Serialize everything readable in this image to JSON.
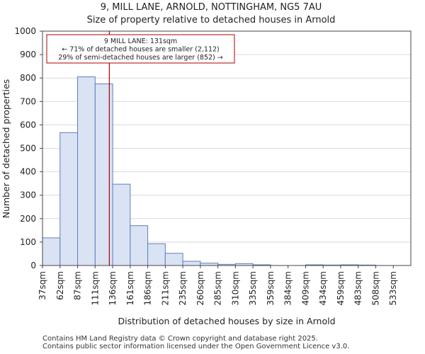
{
  "chart_data": {
    "type": "bar",
    "title": "9, MILL LANE, ARNOLD, NOTTINGHAM, NG5 7AU",
    "subtitle": "Size of property relative to detached houses in Arnold",
    "xlabel": "Distribution of detached houses by size in Arnold",
    "ylabel": "Number of detached properties",
    "categories": [
      "37sqm",
      "62sqm",
      "87sqm",
      "111sqm",
      "136sqm",
      "161sqm",
      "186sqm",
      "211sqm",
      "235sqm",
      "260sqm",
      "285sqm",
      "310sqm",
      "335sqm",
      "359sqm",
      "384sqm",
      "409sqm",
      "434sqm",
      "459sqm",
      "483sqm",
      "508sqm",
      "533sqm"
    ],
    "values": [
      118,
      567,
      805,
      775,
      347,
      170,
      93,
      52,
      18,
      10,
      5,
      8,
      3,
      0,
      0,
      3,
      2,
      3,
      2,
      0,
      0
    ],
    "ylim": [
      0,
      1000
    ],
    "yticks": [
      0,
      100,
      200,
      300,
      400,
      500,
      600,
      700,
      800,
      900,
      1000
    ],
    "marker": {
      "value_sqm": 131,
      "bin_position": 3.81,
      "color": "#aa0000"
    },
    "annotation": {
      "lines": [
        "9 MILL LANE: 131sqm",
        "← 71% of detached houses are smaller (2,112)",
        "29% of semi-detached houses are larger (852) →"
      ]
    },
    "bar_fill": "#dae3f3",
    "bar_edge": "#5b7fbf",
    "grid": true
  },
  "footer": {
    "line1": "Contains HM Land Registry data © Crown copyright and database right 2025.",
    "line2": "Contains public sector information licensed under the Open Government Licence v3.0."
  }
}
